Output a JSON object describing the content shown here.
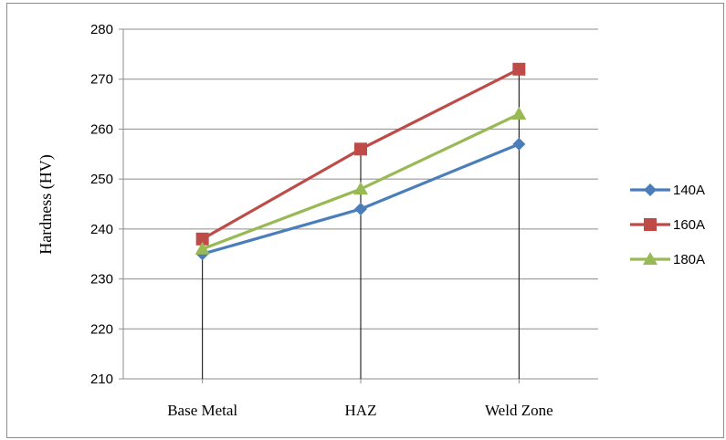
{
  "chart_data": {
    "type": "line",
    "title": "",
    "xlabel": "",
    "ylabel": "Hardness (HV)",
    "categories": [
      "Base Metal",
      "HAZ",
      "Weld Zone"
    ],
    "ylim": [
      210,
      280
    ],
    "yticks": [
      210,
      220,
      230,
      240,
      250,
      260,
      270,
      280
    ],
    "grid": true,
    "legend_position": "right",
    "drop_lines": true,
    "series": [
      {
        "name": "140A",
        "values": [
          235,
          244,
          257
        ],
        "color": "#4a7ebb",
        "marker": "diamond"
      },
      {
        "name": "160A",
        "values": [
          238,
          256,
          272
        ],
        "color": "#be4b48",
        "marker": "square"
      },
      {
        "name": "180A",
        "values": [
          236,
          248,
          263
        ],
        "color": "#98b954",
        "marker": "triangle"
      }
    ]
  }
}
